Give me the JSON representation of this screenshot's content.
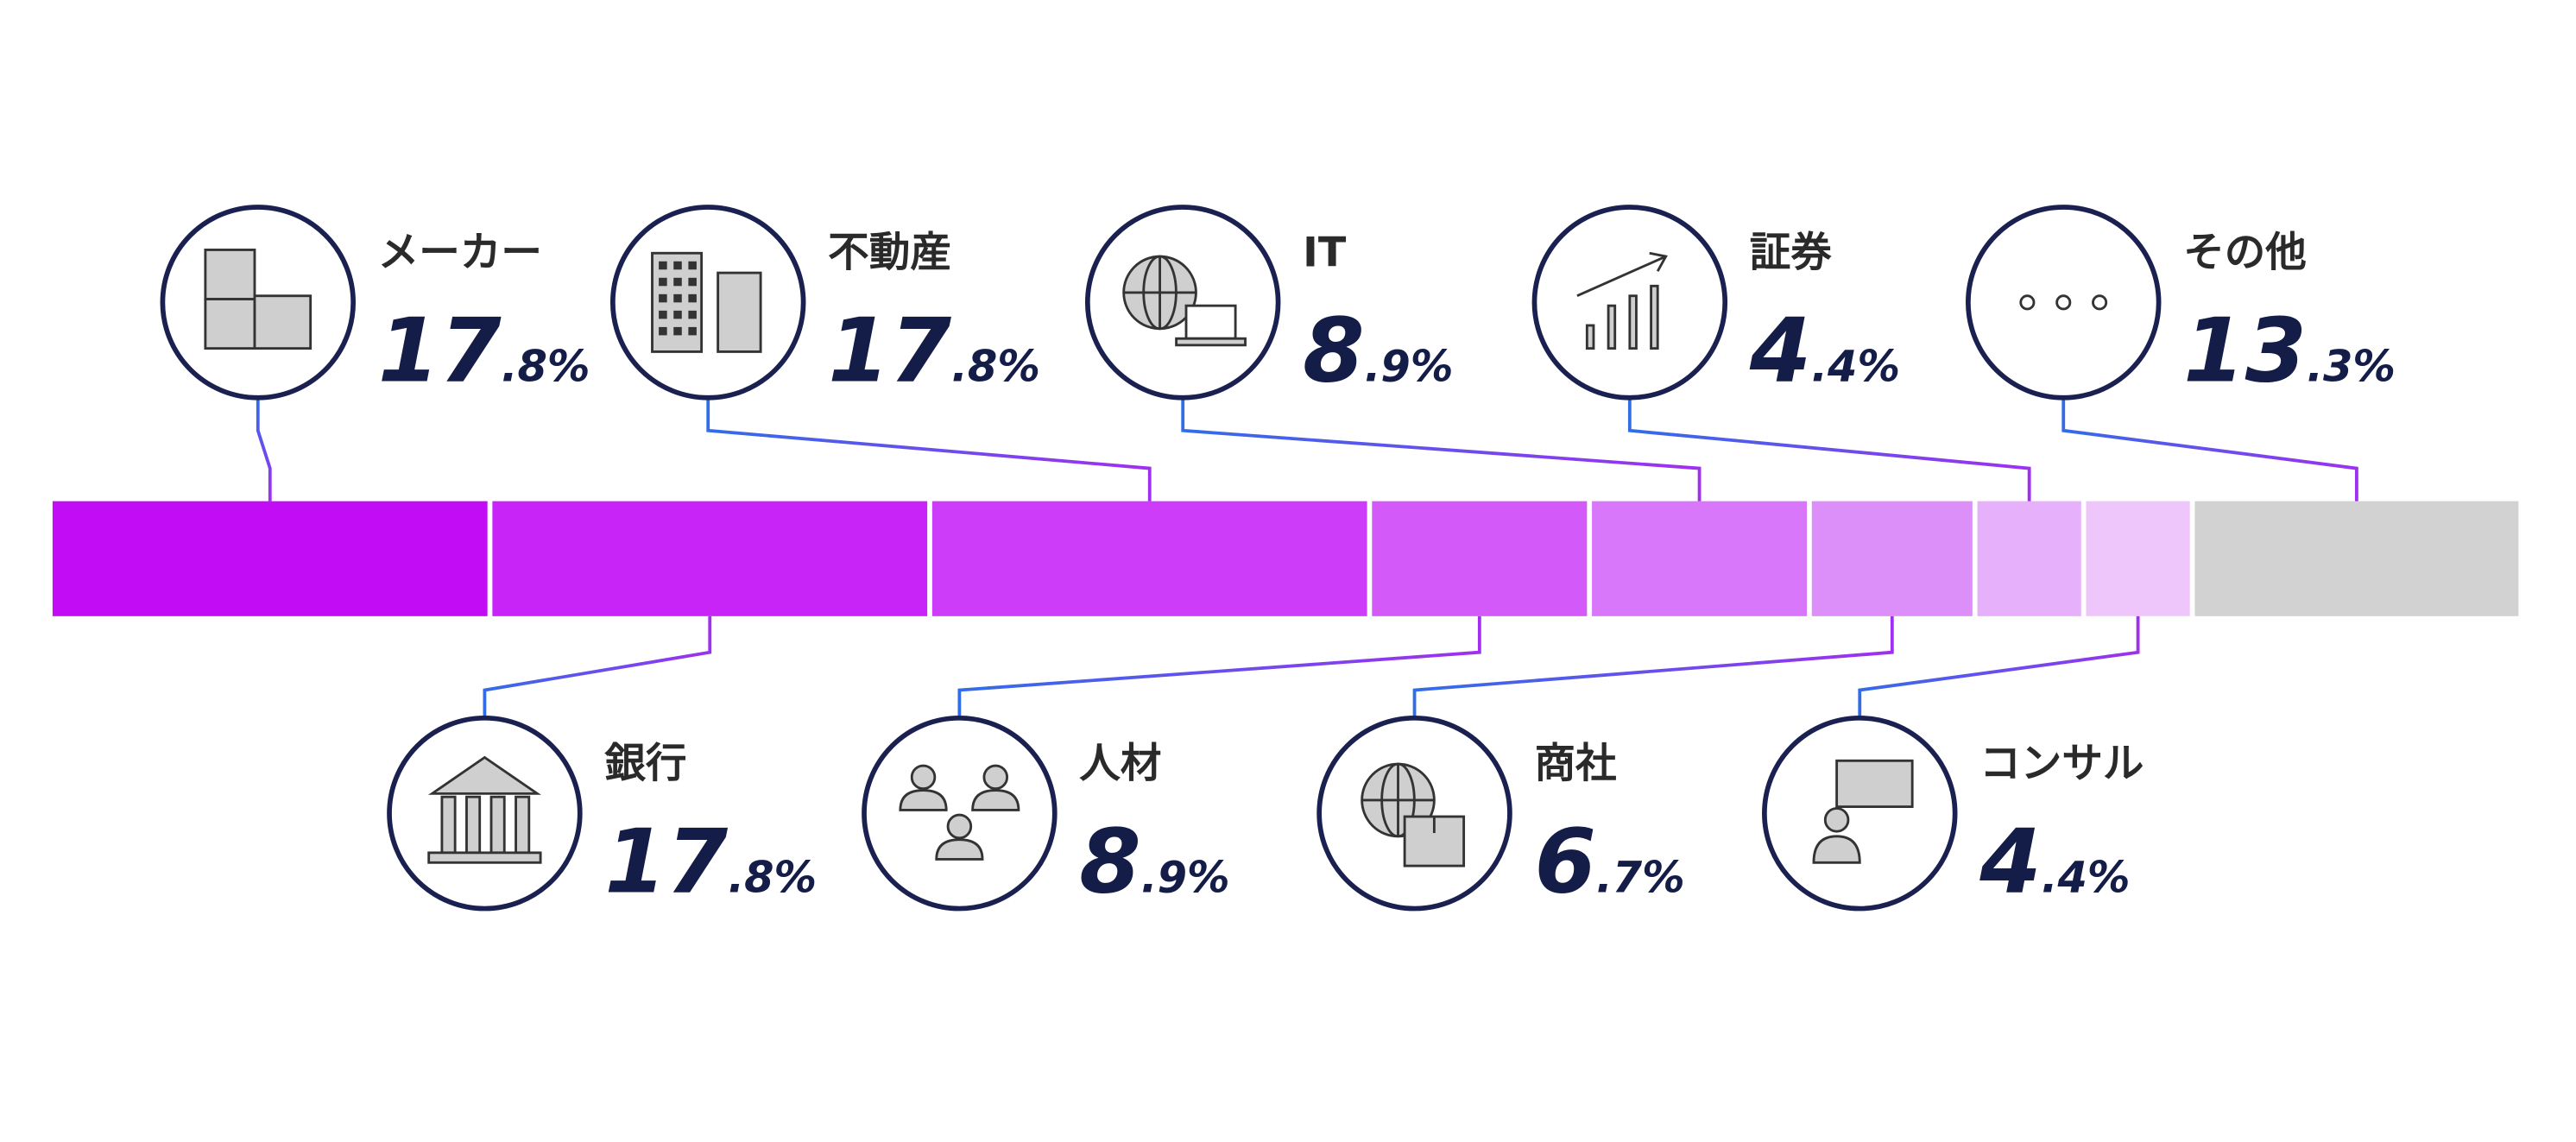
{
  "chart_data": {
    "type": "bar",
    "stacked": true,
    "categories": [
      "メーカー",
      "銀行",
      "不動産",
      "人材",
      "IT",
      "商社",
      "証券",
      "コンサル",
      "その他"
    ],
    "values": [
      17.8,
      17.8,
      17.8,
      8.9,
      8.9,
      6.7,
      4.4,
      4.4,
      13.3
    ],
    "value_labels": [
      "17.8%",
      "17.8%",
      "17.8%",
      "8.9%",
      "8.9%",
      "6.7%",
      "4.4%",
      "4.4%",
      "13.3%"
    ],
    "colors": [
      "#c20cf5",
      "#c824f8",
      "#cd3df9",
      "#d35af8",
      "#d877fa",
      "#dc8ff9",
      "#e6b0fa",
      "#efc6fb",
      "#d2d2d2"
    ]
  }
}
